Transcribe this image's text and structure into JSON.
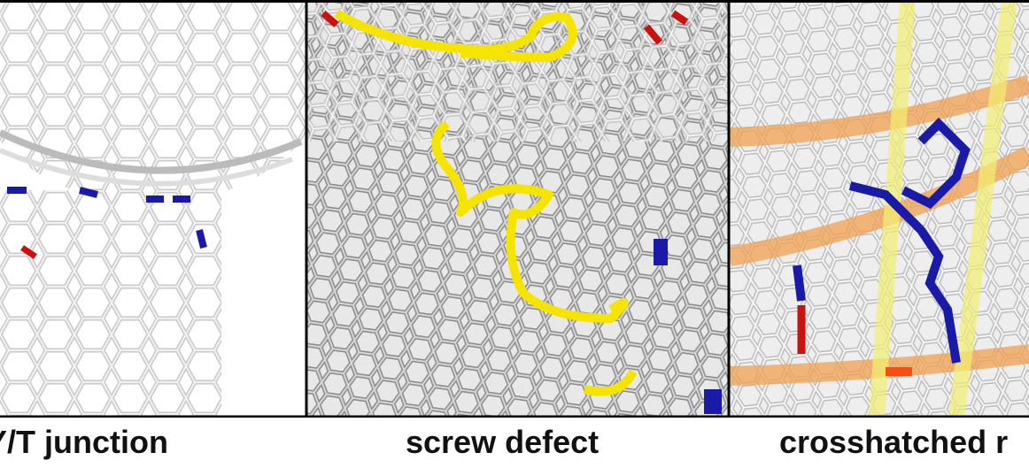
{
  "panels": [
    {
      "caption": "Y/T junction"
    },
    {
      "caption": "screw defect"
    },
    {
      "caption": "crosshatched r"
    }
  ]
}
